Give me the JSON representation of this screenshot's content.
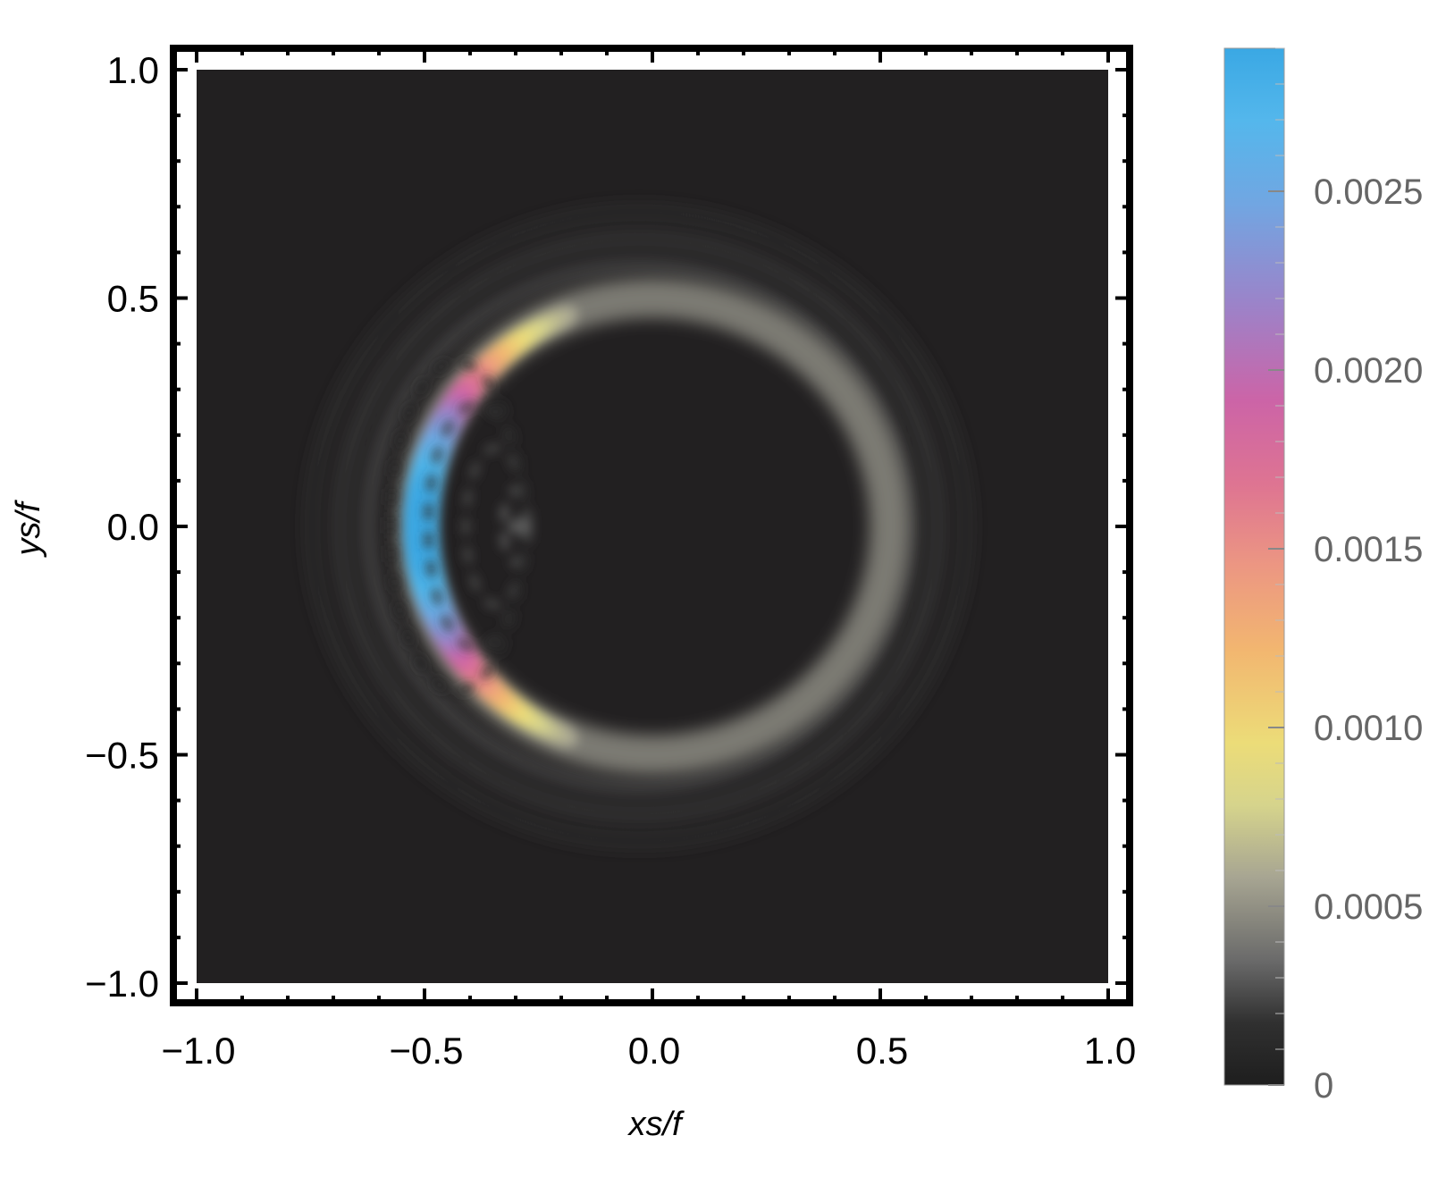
{
  "chart_data": {
    "type": "heatmap",
    "title": "",
    "xlabel": "xs/f",
    "ylabel": "ys/f",
    "xlim": [
      -1.0,
      1.0
    ],
    "ylim": [
      -1.0,
      1.0
    ],
    "x_ticks": [
      -1.0,
      -0.5,
      0.0,
      0.5,
      1.0
    ],
    "y_ticks": [
      -1.0,
      -0.5,
      0.0,
      0.5,
      1.0
    ],
    "x_tick_labels": [
      "−1.0",
      "−0.5",
      "0.0",
      "0.5",
      "1.0"
    ],
    "y_tick_labels": [
      "−1.0",
      "−0.5",
      "0.0",
      "0.5",
      "1.0"
    ],
    "grid": false,
    "background_color": "#222021",
    "features": [
      {
        "shape": "ring",
        "center": [
          0.0,
          0.0
        ],
        "radius_x": 0.52,
        "radius_y": 0.5,
        "base_value": 0.00045,
        "peak_value": 0.0029,
        "peak_side": "left",
        "peak_location": [
          -0.51,
          0.0
        ]
      },
      {
        "shape": "interference fringes",
        "location": "inside ring near left edge",
        "center": [
          -0.3,
          0.0
        ],
        "value": 0.0003
      }
    ],
    "colorbar": {
      "min": 0,
      "max": 0.0029,
      "ticks": [
        0,
        0.0005,
        0.001,
        0.0015,
        0.002,
        0.0025
      ],
      "tick_labels": [
        "0",
        "0.0005",
        "0.0010",
        "0.0015",
        "0.0020",
        "0.0025"
      ],
      "colormap": [
        {
          "stop": 0.0,
          "color": "#1e1e1e"
        },
        {
          "stop": 0.06,
          "color": "#303030"
        },
        {
          "stop": 0.12,
          "color": "#6a6a6a"
        },
        {
          "stop": 0.2,
          "color": "#a7a592"
        },
        {
          "stop": 0.27,
          "color": "#d6d48c"
        },
        {
          "stop": 0.33,
          "color": "#ecdc78"
        },
        {
          "stop": 0.42,
          "color": "#f2b670"
        },
        {
          "stop": 0.5,
          "color": "#ec9782"
        },
        {
          "stop": 0.58,
          "color": "#de7492"
        },
        {
          "stop": 0.66,
          "color": "#cc64a7"
        },
        {
          "stop": 0.75,
          "color": "#9d82c8"
        },
        {
          "stop": 0.85,
          "color": "#71a6e2"
        },
        {
          "stop": 0.93,
          "color": "#54b7ec"
        },
        {
          "stop": 1.0,
          "color": "#3aa8e4"
        }
      ]
    }
  }
}
